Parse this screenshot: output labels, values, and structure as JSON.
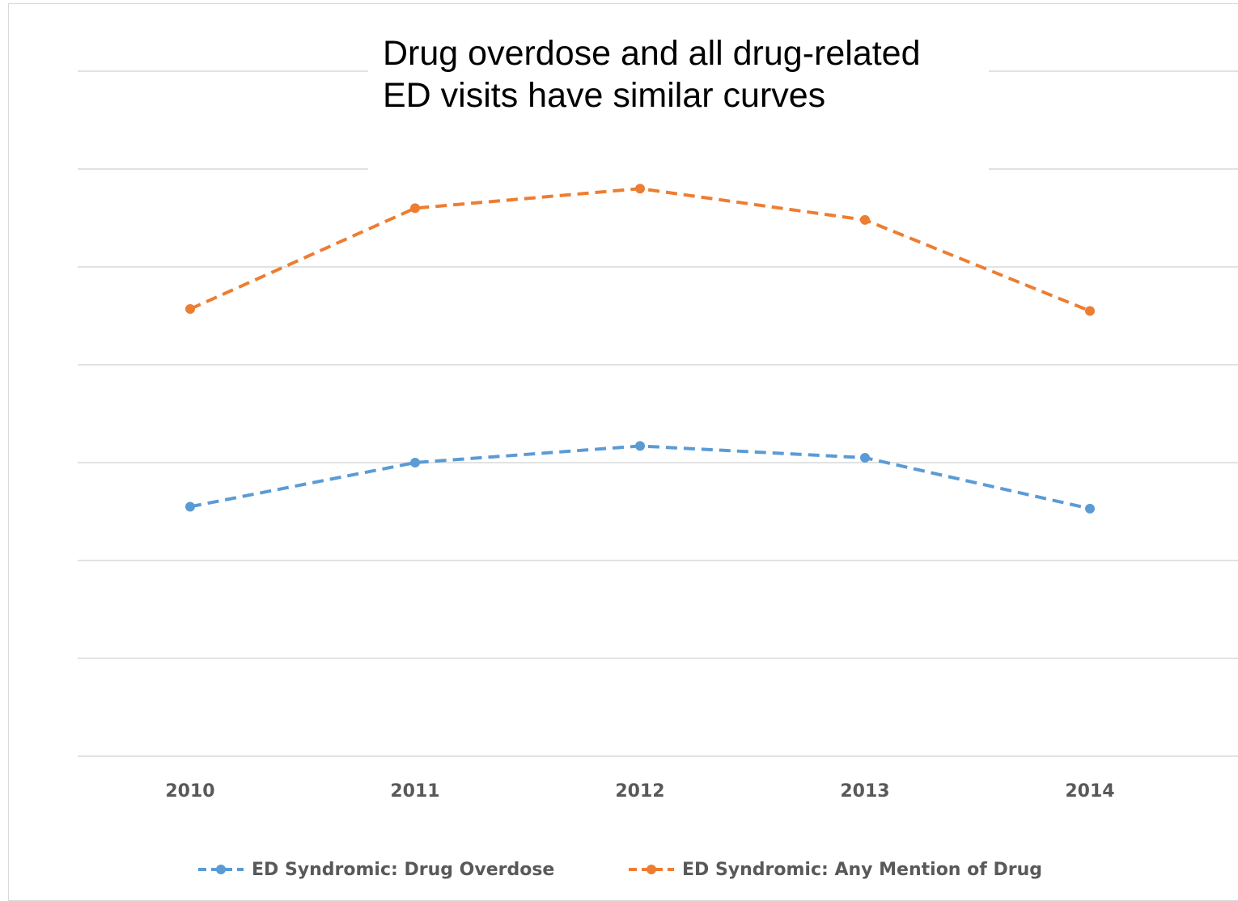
{
  "chart_data": {
    "type": "line",
    "title": "Drug overdose and all drug-related ED visits have similar curves",
    "categories": [
      "2010",
      "2011",
      "2012",
      "2013",
      "2014"
    ],
    "xlabel": "",
    "ylabel": "",
    "grid": true,
    "legend_position": "bottom",
    "ylim": [
      0,
      7
    ],
    "y_axis_labels_visible": false,
    "series": [
      {
        "name": "ED Syndromic: Drug Overdose",
        "values": [
          2.55,
          3.0,
          3.17,
          3.05,
          2.53
        ],
        "color": "#5b9bd5",
        "line_style": "dashed",
        "marker": "circle"
      },
      {
        "name": "ED Syndromic: Any Mention of Drug",
        "values": [
          4.57,
          5.6,
          5.8,
          5.48,
          4.55
        ],
        "color": "#ed7d31",
        "line_style": "dashed",
        "marker": "circle"
      }
    ]
  }
}
